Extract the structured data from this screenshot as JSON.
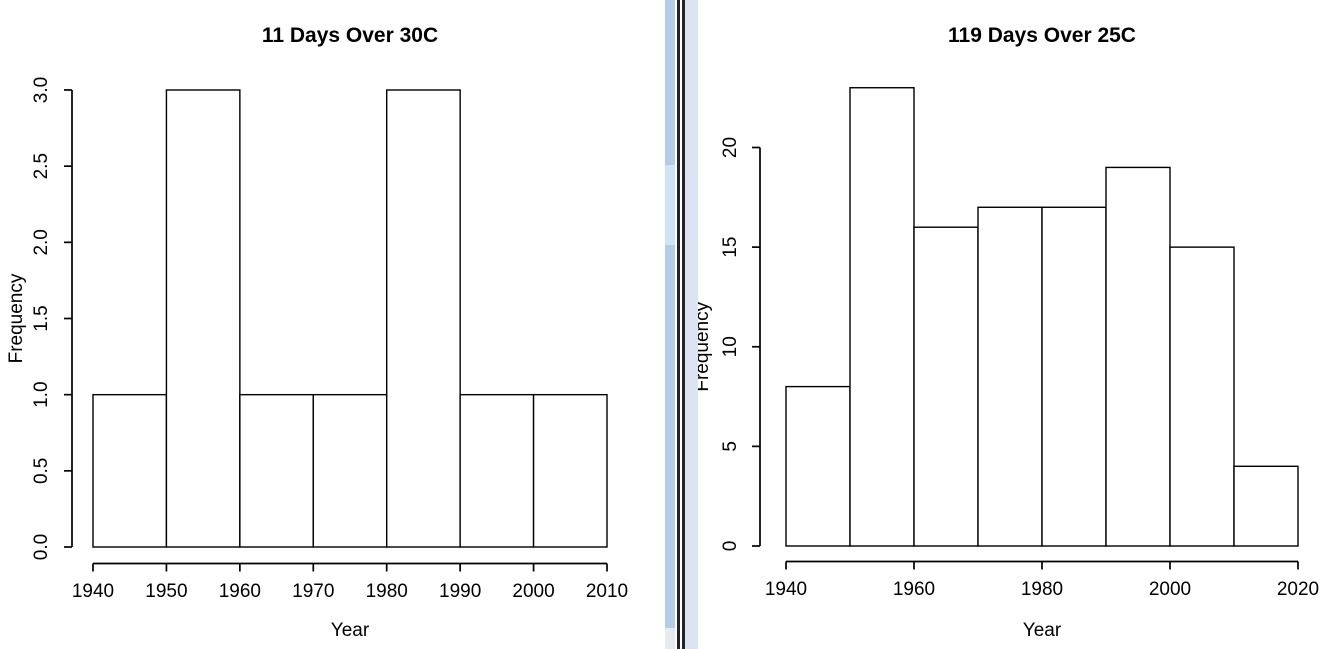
{
  "window": {
    "background_color": "#ffffff",
    "description": "Two R plot windows side by side"
  },
  "divider": {
    "left_scrollbar_color": "#b3cde9",
    "left_scrollbar_thumb_color": "#cfe3f7",
    "left_scrollbar_end_color": "#e7ebf0",
    "border_color": "#23232c",
    "gap_color": "#ffffff",
    "right_margin_color": "#dbe4f0"
  },
  "chart_data": [
    {
      "type": "bar",
      "title": "11 Days Over 30C",
      "xlabel": "Year",
      "ylabel": "Frequency",
      "categories": [
        "1940-1950",
        "1950-1960",
        "1960-1970",
        "1970-1980",
        "1980-1990",
        "1990-2000",
        "2000-2010"
      ],
      "values": [
        1,
        3,
        1,
        1,
        3,
        1,
        1
      ],
      "bin_start": 1940,
      "bin_width": 10,
      "xlim": [
        1940,
        2010
      ],
      "ylim": [
        0,
        3
      ],
      "x_ticks": [
        1940,
        1950,
        1960,
        1970,
        1980,
        1990,
        2000,
        2010
      ],
      "x_tick_labels": [
        "1940",
        "1950",
        "1960",
        "1970",
        "1980",
        "1990",
        "2000",
        "2010"
      ],
      "y_ticks": [
        0,
        0.5,
        1,
        1.5,
        2,
        2.5,
        3
      ],
      "y_tick_labels": [
        "0.0",
        "0.5",
        "1.0",
        "1.5",
        "2.0",
        "2.5",
        "3.0"
      ],
      "grid": false,
      "legend": null,
      "bar_fill": "#ffffff",
      "bar_stroke": "#000000"
    },
    {
      "type": "bar",
      "title": "119 Days Over 25C",
      "xlabel": "Year",
      "ylabel": "Frequency",
      "categories": [
        "1940-1950",
        "1950-1960",
        "1960-1970",
        "1970-1980",
        "1980-1990",
        "1990-2000",
        "2000-2010",
        "2010-2020"
      ],
      "values": [
        8,
        23,
        16,
        17,
        17,
        19,
        15,
        4
      ],
      "bin_start": 1940,
      "bin_width": 10,
      "xlim": [
        1940,
        2020
      ],
      "ylim": [
        0,
        23
      ],
      "x_ticks": [
        1940,
        1960,
        1980,
        2000,
        2020
      ],
      "x_tick_labels": [
        "1940",
        "1960",
        "1980",
        "2000",
        "2020"
      ],
      "y_ticks": [
        0,
        5,
        10,
        15,
        20
      ],
      "y_tick_labels": [
        "0",
        "5",
        "10",
        "15",
        "20"
      ],
      "grid": false,
      "legend": null,
      "bar_fill": "#ffffff",
      "bar_stroke": "#000000"
    }
  ]
}
